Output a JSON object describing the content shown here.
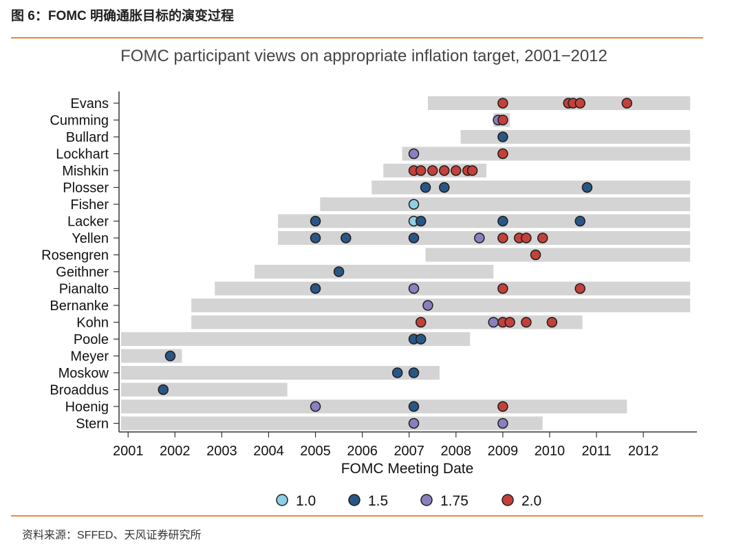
{
  "figure": {
    "title": "图 6：FOMC 明确通胀目标的演变过程",
    "source": "资料来源：SFFED、天风证券研究所"
  },
  "chart_data": {
    "type": "scatter",
    "title": "FOMC participant views on appropriate inflation target, 2001−2012",
    "xlabel": "FOMC Meeting Date",
    "ylabel": "",
    "xlim": [
      2000.85,
      2013.1
    ],
    "x_ticks": [
      "2001",
      "2002",
      "2003",
      "2004",
      "2005",
      "2006",
      "2007",
      "2008",
      "2009",
      "2010",
      "2011",
      "2012"
    ],
    "legend_position": "bottom",
    "grid": false,
    "legend": [
      {
        "key": "1.0",
        "label": "1.0",
        "color": "#8ecfe6"
      },
      {
        "key": "1.5",
        "label": "1.5",
        "color": "#2a5686"
      },
      {
        "key": "1.75",
        "label": "1.75",
        "color": "#8a80c0"
      },
      {
        "key": "2.0",
        "label": "2.0",
        "color": "#c4403a"
      }
    ],
    "participants": [
      {
        "name": "Evans",
        "tenure": [
          2007.4,
          2013.0
        ],
        "points": [
          [
            2009.0,
            "2.0"
          ],
          [
            2010.4,
            "2.0"
          ],
          [
            2010.5,
            "2.0"
          ],
          [
            2010.65,
            "2.0"
          ],
          [
            2011.65,
            "2.0"
          ]
        ]
      },
      {
        "name": "Cumming",
        "tenure": [
          2008.8,
          2009.15
        ],
        "points": [
          [
            2008.9,
            "1.75"
          ],
          [
            2009.0,
            "2.0"
          ]
        ]
      },
      {
        "name": "Bullard",
        "tenure": [
          2008.1,
          2013.0
        ],
        "points": [
          [
            2009.0,
            "1.5"
          ]
        ]
      },
      {
        "name": "Lockhart",
        "tenure": [
          2006.85,
          2013.0
        ],
        "points": [
          [
            2007.1,
            "1.75"
          ],
          [
            2009.0,
            "2.0"
          ]
        ]
      },
      {
        "name": "Mishkin",
        "tenure": [
          2006.45,
          2008.65
        ],
        "points": [
          [
            2007.1,
            "2.0"
          ],
          [
            2007.25,
            "2.0"
          ],
          [
            2007.5,
            "2.0"
          ],
          [
            2007.75,
            "2.0"
          ],
          [
            2008.0,
            "2.0"
          ],
          [
            2008.25,
            "2.0"
          ],
          [
            2008.35,
            "2.0"
          ]
        ]
      },
      {
        "name": "Plosser",
        "tenure": [
          2006.2,
          2013.0
        ],
        "points": [
          [
            2007.35,
            "1.5"
          ],
          [
            2007.75,
            "1.5"
          ],
          [
            2010.8,
            "1.5"
          ]
        ]
      },
      {
        "name": "Fisher",
        "tenure": [
          2005.1,
          2013.0
        ],
        "points": [
          [
            2007.1,
            "1.0"
          ]
        ]
      },
      {
        "name": "Lacker",
        "tenure": [
          2004.2,
          2013.0
        ],
        "points": [
          [
            2005.0,
            "1.5"
          ],
          [
            2007.1,
            "1.0"
          ],
          [
            2007.25,
            "1.5"
          ],
          [
            2009.0,
            "1.5"
          ],
          [
            2010.65,
            "1.5"
          ]
        ]
      },
      {
        "name": "Yellen",
        "tenure": [
          2004.2,
          2013.0
        ],
        "points": [
          [
            2005.0,
            "1.5"
          ],
          [
            2005.65,
            "1.5"
          ],
          [
            2007.1,
            "1.5"
          ],
          [
            2008.5,
            "1.75"
          ],
          [
            2009.0,
            "2.0"
          ],
          [
            2009.35,
            "2.0"
          ],
          [
            2009.5,
            "2.0"
          ],
          [
            2009.85,
            "2.0"
          ]
        ]
      },
      {
        "name": "Rosengren",
        "tenure": [
          2007.35,
          2013.0
        ],
        "points": [
          [
            2009.7,
            "2.0"
          ]
        ]
      },
      {
        "name": "Geithner",
        "tenure": [
          2003.7,
          2008.8
        ],
        "points": [
          [
            2005.5,
            "1.5"
          ]
        ]
      },
      {
        "name": "Pianalto",
        "tenure": [
          2002.85,
          2013.0
        ],
        "points": [
          [
            2005.0,
            "1.5"
          ],
          [
            2007.1,
            "1.75"
          ],
          [
            2009.0,
            "2.0"
          ],
          [
            2010.65,
            "2.0"
          ]
        ]
      },
      {
        "name": "Bernanke",
        "tenure": [
          2002.35,
          2013.0
        ],
        "points": [
          [
            2007.4,
            "1.75"
          ]
        ]
      },
      {
        "name": "Kohn",
        "tenure": [
          2002.35,
          2010.7
        ],
        "points": [
          [
            2007.25,
            "2.0"
          ],
          [
            2008.8,
            "1.75"
          ],
          [
            2009.0,
            "2.0"
          ],
          [
            2009.15,
            "2.0"
          ],
          [
            2009.5,
            "2.0"
          ],
          [
            2010.05,
            "2.0"
          ]
        ]
      },
      {
        "name": "Poole",
        "tenure": [
          2000.85,
          2008.3
        ],
        "points": [
          [
            2007.1,
            "1.5"
          ],
          [
            2007.25,
            "1.5"
          ]
        ]
      },
      {
        "name": "Meyer",
        "tenure": [
          2000.85,
          2002.15
        ],
        "points": [
          [
            2001.9,
            "1.5"
          ]
        ]
      },
      {
        "name": "Moskow",
        "tenure": [
          2000.85,
          2007.65
        ],
        "points": [
          [
            2006.75,
            "1.5"
          ],
          [
            2007.1,
            "1.5"
          ]
        ]
      },
      {
        "name": "Broaddus",
        "tenure": [
          2000.85,
          2004.4
        ],
        "points": [
          [
            2001.75,
            "1.5"
          ]
        ]
      },
      {
        "name": "Hoenig",
        "tenure": [
          2000.85,
          2011.65
        ],
        "points": [
          [
            2005.0,
            "1.75"
          ],
          [
            2007.1,
            "1.5"
          ],
          [
            2009.0,
            "2.0"
          ]
        ]
      },
      {
        "name": "Stern",
        "tenure": [
          2000.85,
          2009.85
        ],
        "points": [
          [
            2007.1,
            "1.75"
          ],
          [
            2009.0,
            "1.75"
          ]
        ]
      }
    ]
  }
}
